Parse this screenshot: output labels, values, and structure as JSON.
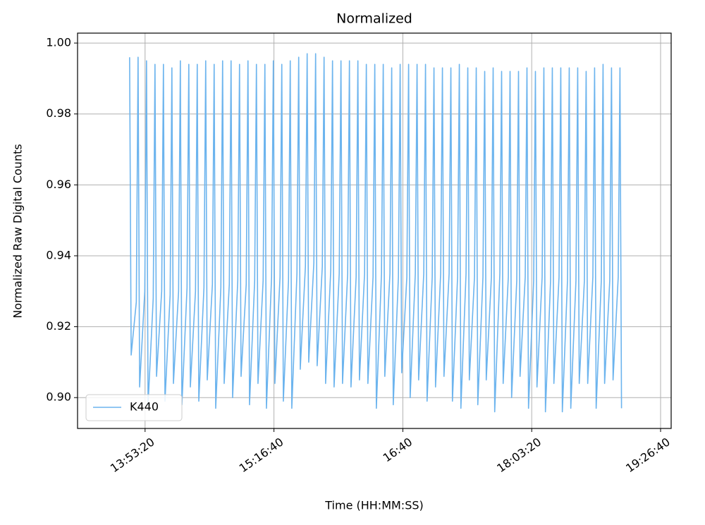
{
  "chart_data": {
    "type": "line",
    "title": "Normalized",
    "x_label": "Time (HH:MM:SS)",
    "y_label": "Normalized Raw Digital Counts",
    "xlim": [
      47380,
      70410
    ],
    "ylim": [
      0.8913,
      1.0028
    ],
    "xticks": [
      {
        "value": 50000,
        "label": "13:53:20"
      },
      {
        "value": 55000,
        "label": "15:16:40"
      },
      {
        "value": 60000,
        "label": "16:40"
      },
      {
        "value": 65000,
        "label": "18:03:20"
      },
      {
        "value": 70000,
        "label": "19:26:40"
      }
    ],
    "yticks": [
      {
        "value": 0.9,
        "label": "0.90"
      },
      0.92,
      0.94,
      0.96,
      0.98,
      {
        "value": 1.0,
        "label": "1.00"
      }
    ],
    "grid": true,
    "legend": "lower left",
    "x": [
      49400,
      49460,
      49660,
      49728,
      49788,
      49988,
      50056,
      50116,
      50316,
      50384,
      50444,
      50644,
      50712,
      50772,
      50972,
      51040,
      51100,
      51300,
      51368,
      51428,
      51628,
      51696,
      51756,
      51956,
      52024,
      52084,
      52284,
      52352,
      52412,
      52612,
      52680,
      52740,
      52940,
      53008,
      53068,
      53268,
      53336,
      53396,
      53596,
      53664,
      53724,
      53924,
      53992,
      54052,
      54252,
      54320,
      54380,
      54580,
      54648,
      54708,
      54908,
      54976,
      55036,
      55236,
      55304,
      55364,
      55564,
      55632,
      55692,
      55892,
      55960,
      56020,
      56220,
      56288,
      56348,
      56548,
      56616,
      56676,
      56876,
      56944,
      57004,
      57204,
      57272,
      57332,
      57532,
      57600,
      57660,
      57860,
      57928,
      57988,
      58188,
      58256,
      58316,
      58516,
      58584,
      58644,
      58844,
      58912,
      58972,
      59172,
      59240,
      59300,
      59500,
      59568,
      59628,
      59828,
      59896,
      59956,
      60156,
      60224,
      60284,
      60484,
      60552,
      60612,
      60812,
      60880,
      60940,
      61140,
      61208,
      61268,
      61468,
      61536,
      61596,
      61796,
      61864,
      61924,
      62124,
      62192,
      62252,
      62452,
      62520,
      62580,
      62780,
      62848,
      62908,
      63108,
      63176,
      63236,
      63436,
      63504,
      63564,
      63764,
      63832,
      63892,
      64092,
      64160,
      64220,
      64420,
      64488,
      64548,
      64748,
      64816,
      64876,
      65076,
      65144,
      65204,
      65404,
      65472,
      65532,
      65732,
      65800,
      65860,
      66060,
      66128,
      66188,
      66388,
      66456,
      66516,
      66716,
      66784,
      66844,
      67044,
      67112,
      67172,
      67372,
      67440,
      67500,
      67700,
      67768,
      67828,
      68028,
      68096,
      68156,
      68356,
      68424,
      68484
    ],
    "series": [
      {
        "name": "K440",
        "color": "#6cb4ee",
        "values": [
          0.996,
          0.912,
          0.927,
          0.996,
          0.903,
          0.93,
          0.995,
          0.898,
          0.928,
          0.994,
          0.906,
          0.93,
          0.994,
          0.899,
          0.929,
          0.993,
          0.904,
          0.93,
          0.995,
          0.898,
          0.931,
          0.994,
          0.903,
          0.93,
          0.994,
          0.899,
          0.931,
          0.995,
          0.905,
          0.932,
          0.994,
          0.897,
          0.931,
          0.995,
          0.904,
          0.932,
          0.995,
          0.9,
          0.933,
          0.994,
          0.906,
          0.932,
          0.995,
          0.898,
          0.933,
          0.994,
          0.904,
          0.933,
          0.994,
          0.897,
          0.934,
          0.995,
          0.904,
          0.934,
          0.994,
          0.899,
          0.933,
          0.995,
          0.897,
          0.935,
          0.996,
          0.908,
          0.937,
          0.997,
          0.91,
          0.938,
          0.997,
          0.909,
          0.937,
          0.996,
          0.904,
          0.936,
          0.995,
          0.903,
          0.935,
          0.995,
          0.904,
          0.935,
          0.995,
          0.903,
          0.934,
          0.995,
          0.905,
          0.935,
          0.994,
          0.904,
          0.934,
          0.994,
          0.897,
          0.935,
          0.994,
          0.906,
          0.935,
          0.993,
          0.898,
          0.934,
          0.994,
          0.907,
          0.934,
          0.994,
          0.9,
          0.935,
          0.994,
          0.905,
          0.935,
          0.994,
          0.899,
          0.934,
          0.993,
          0.903,
          0.935,
          0.993,
          0.906,
          0.935,
          0.993,
          0.899,
          0.934,
          0.994,
          0.897,
          0.935,
          0.993,
          0.905,
          0.934,
          0.993,
          0.898,
          0.934,
          0.992,
          0.905,
          0.934,
          0.993,
          0.896,
          0.935,
          0.992,
          0.904,
          0.934,
          0.992,
          0.9,
          0.933,
          0.992,
          0.906,
          0.934,
          0.993,
          0.897,
          0.933,
          0.992,
          0.903,
          0.934,
          0.993,
          0.896,
          0.933,
          0.993,
          0.904,
          0.934,
          0.993,
          0.896,
          0.933,
          0.993,
          0.897,
          0.933,
          0.993,
          0.904,
          0.933,
          0.992,
          0.904,
          0.934,
          0.993,
          0.897,
          0.933,
          0.994,
          0.904,
          0.933,
          0.993,
          0.905,
          0.934,
          0.993,
          0.897
        ]
      }
    ]
  }
}
